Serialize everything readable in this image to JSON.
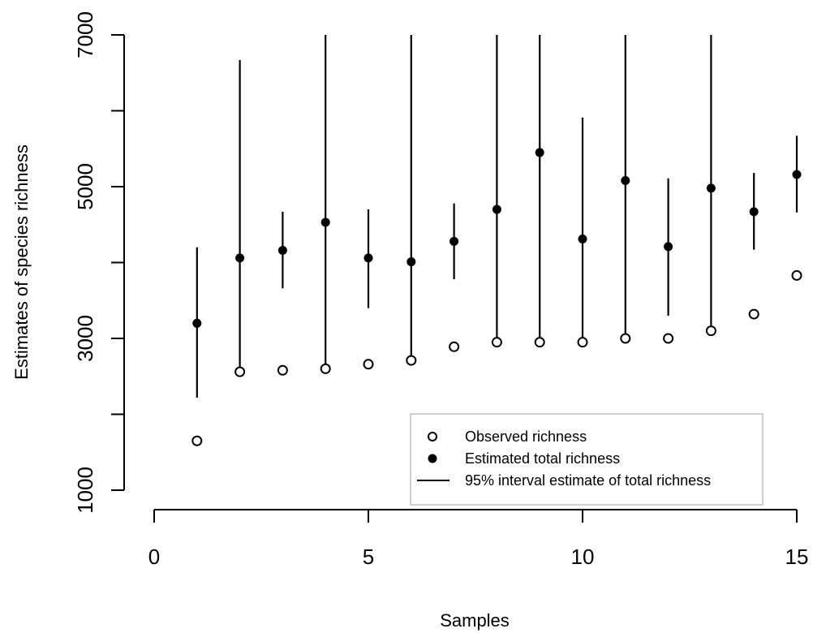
{
  "chart_data": {
    "type": "scatter",
    "xlabel": "Samples",
    "ylabel": "Estimates of species richness",
    "xlim": [
      0,
      15
    ],
    "ylim": [
      1000,
      7000
    ],
    "x_ticks": [
      0,
      5,
      10,
      15
    ],
    "y_ticks": [
      1000,
      3000,
      5000,
      7000
    ],
    "y_minor_ticks": [
      2000,
      4000,
      6000
    ],
    "grid": false,
    "legend_position": "bottom-right",
    "x": [
      1,
      2,
      3,
      4,
      5,
      6,
      7,
      8,
      9,
      10,
      11,
      12,
      13,
      14,
      15
    ],
    "series": [
      {
        "name": "Observed richness",
        "marker": "open-circle",
        "values": [
          1650,
          2560,
          2580,
          2600,
          2660,
          2710,
          2890,
          2950,
          2950,
          2950,
          3000,
          3000,
          3100,
          3320,
          3830
        ]
      },
      {
        "name": "Estimated total richness",
        "marker": "filled-circle",
        "values": [
          3200,
          4060,
          4160,
          4530,
          4060,
          4010,
          4280,
          4700,
          5450,
          4310,
          5080,
          4210,
          4980,
          4670,
          5160
        ]
      },
      {
        "name": "95% interval estimate of total richness",
        "marker": "line",
        "lower": [
          2220,
          2560,
          3660,
          2600,
          3400,
          2700,
          3780,
          2950,
          2950,
          2950,
          3000,
          3300,
          3100,
          4170,
          4660
        ],
        "upper": [
          4200,
          6670,
          4670,
          7000,
          4700,
          7000,
          4780,
          7000,
          7000,
          5910,
          7000,
          5110,
          7000,
          5180,
          5670
        ]
      }
    ]
  }
}
